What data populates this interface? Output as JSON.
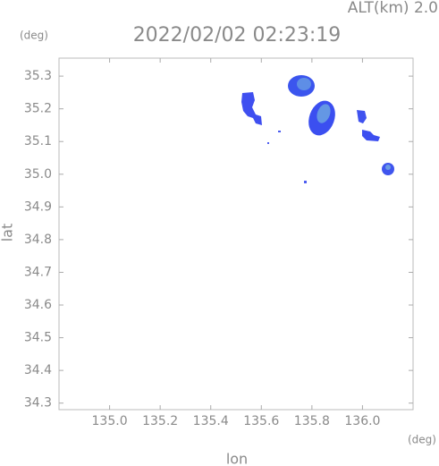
{
  "chart_data": {
    "type": "map",
    "title": "2022/02/02 02:23:19",
    "subtitle": "ALT(km) 2.0",
    "x_unit": "(deg)",
    "y_unit": "(deg)",
    "xlabel": "lon",
    "ylabel": "lat",
    "xlim": [
      134.8,
      136.2
    ],
    "ylim": [
      34.28,
      35.355
    ],
    "xticks": [
      {
        "value": 135.0,
        "label": "135.0"
      },
      135.2,
      135.4,
      135.6,
      135.8,
      {
        "value": 136.0,
        "label": "136.0"
      }
    ],
    "yticks": [
      34.3,
      34.4,
      34.5,
      34.6,
      34.7,
      34.8,
      34.9,
      {
        "value": 35.0,
        "label": "35.0"
      },
      35.1,
      35.2,
      35.3
    ]
  }
}
